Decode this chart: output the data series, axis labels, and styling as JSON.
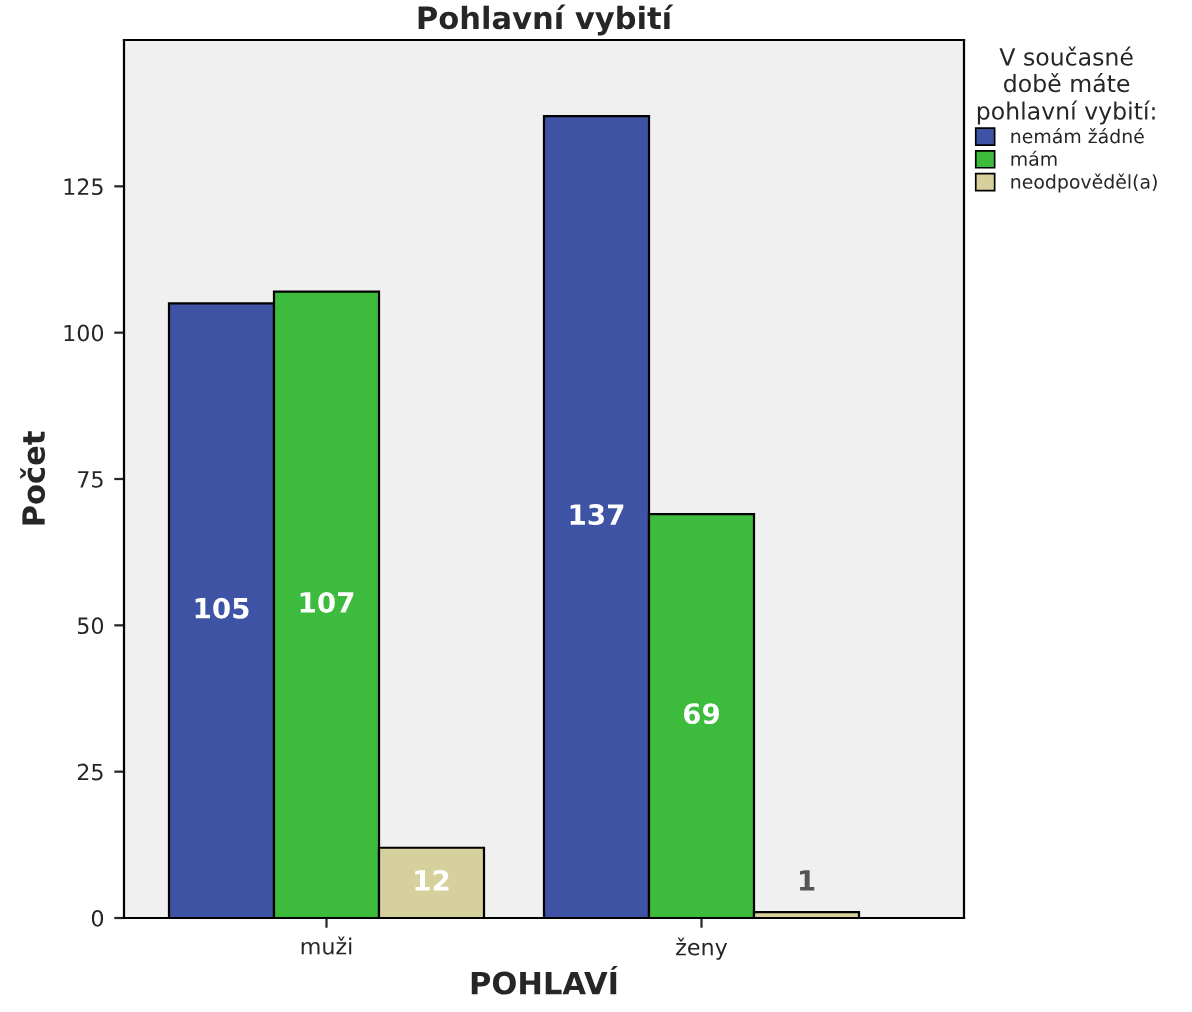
{
  "chart_data": {
    "type": "bar",
    "title": "Pohlavní vybití",
    "xlabel": "POHLAVÍ",
    "ylabel": "Počet",
    "legend_title": "V současné\ndobě máte\npohlavní vybití:",
    "categories": [
      "muži",
      "ženy"
    ],
    "series": [
      {
        "name": "nemám žádné",
        "color": "#3e53a4",
        "values": [
          105,
          137
        ]
      },
      {
        "name": "mám",
        "color": "#3dbb3d",
        "values": [
          107,
          69
        ]
      },
      {
        "name": "neodpověděl(a)",
        "color": "#d6d09c",
        "values": [
          12,
          1
        ]
      }
    ],
    "ylim": [
      0,
      150
    ],
    "yticks": [
      0,
      25,
      50,
      75,
      100,
      125
    ],
    "grid": false,
    "legend": "right",
    "data_labels": true
  }
}
